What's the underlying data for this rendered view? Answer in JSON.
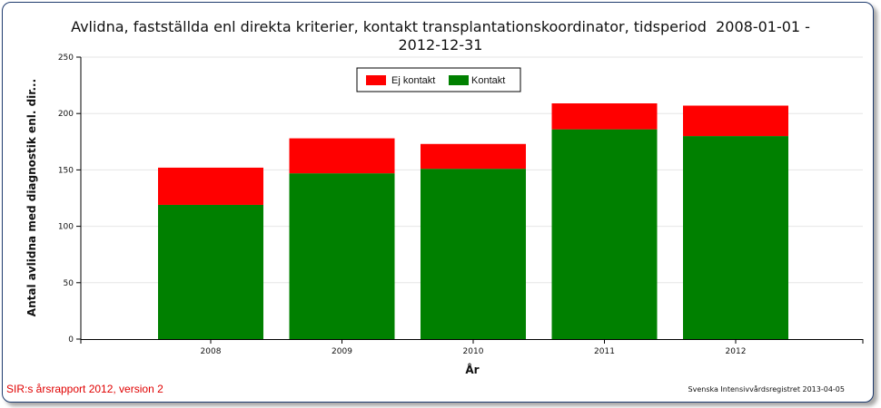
{
  "chart_data": {
    "type": "bar",
    "stacked": true,
    "title": "Avlidna, fastställda enl direkta kriterier, kontakt transplantationskoordinator, tidsperiod  2008-01-01 - 2012-12-31",
    "xlabel": "År",
    "ylabel": "Antal  avlidna  med  diagnostik  enl. dir...",
    "categories": [
      "2008",
      "2009",
      "2010",
      "2011",
      "2012"
    ],
    "series": [
      {
        "name": "Kontakt",
        "color": "#008000",
        "values": [
          119,
          147,
          151,
          186,
          180
        ]
      },
      {
        "name": "Ej kontakt",
        "color": "#ff0000",
        "values": [
          33,
          31,
          22,
          23,
          27
        ]
      }
    ],
    "ylim": [
      0,
      250
    ],
    "yticks": [
      0,
      50,
      100,
      150,
      200,
      250
    ],
    "grid": true,
    "legend": "top-center",
    "legend_order": [
      "Ej kontakt",
      "Kontakt"
    ]
  },
  "footer": {
    "left": "SIR:s årsrapport 2012, version 2",
    "right": "Svenska Intensivvårdsregistret 2013-04-05"
  }
}
